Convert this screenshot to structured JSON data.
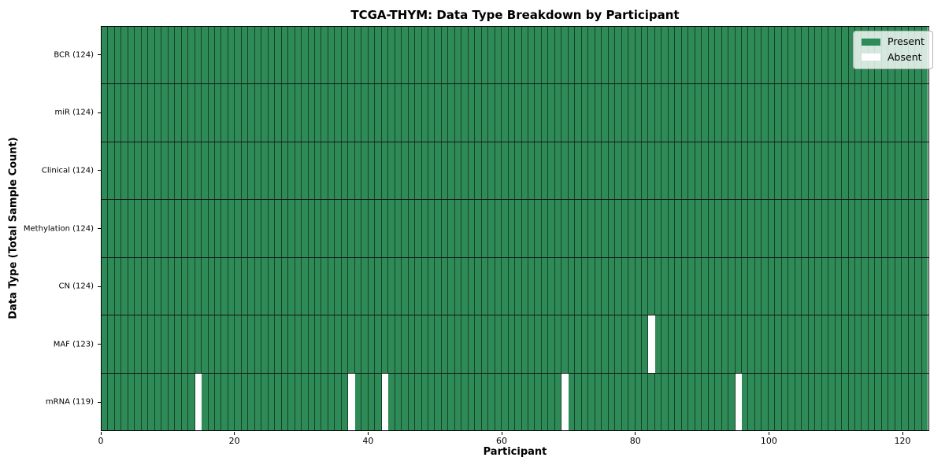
{
  "chart_data": {
    "type": "heatmap",
    "title": "TCGA-THYM: Data Type Breakdown by Participant",
    "xlabel": "Participant",
    "ylabel": "Data Type (Total Sample Count)",
    "x_ticks": [
      0,
      20,
      40,
      60,
      80,
      100,
      120
    ],
    "xlim": [
      0,
      124
    ],
    "n_participants": 124,
    "grid": "cell-edges",
    "legend_position": "upper-right",
    "rows": [
      {
        "label": "BCR (124)",
        "data_type": "BCR",
        "present_count": 124,
        "absent_participants": []
      },
      {
        "label": "miR (124)",
        "data_type": "miR",
        "present_count": 124,
        "absent_participants": []
      },
      {
        "label": "Clinical (124)",
        "data_type": "Clinical",
        "present_count": 124,
        "absent_participants": []
      },
      {
        "label": "Methylation (124)",
        "data_type": "Methylation",
        "present_count": 124,
        "absent_participants": []
      },
      {
        "label": "CN (124)",
        "data_type": "CN",
        "present_count": 124,
        "absent_participants": []
      },
      {
        "label": "MAF (123)",
        "data_type": "MAF",
        "present_count": 123,
        "absent_participants": [
          82
        ]
      },
      {
        "label": "mRNA (119)",
        "data_type": "mRNA",
        "present_count": 119,
        "absent_participants": [
          14,
          37,
          42,
          69,
          95
        ]
      }
    ],
    "legend": [
      {
        "label": "Present",
        "color": "#2e8b57"
      },
      {
        "label": "Absent",
        "color": "#ffffff"
      }
    ],
    "colors": {
      "present": "#2e8b57",
      "absent": "#ffffff",
      "cell_edge": "#1d4f34",
      "row_separator": "#151515",
      "axis": "#000000",
      "background": "#ffffff"
    }
  }
}
